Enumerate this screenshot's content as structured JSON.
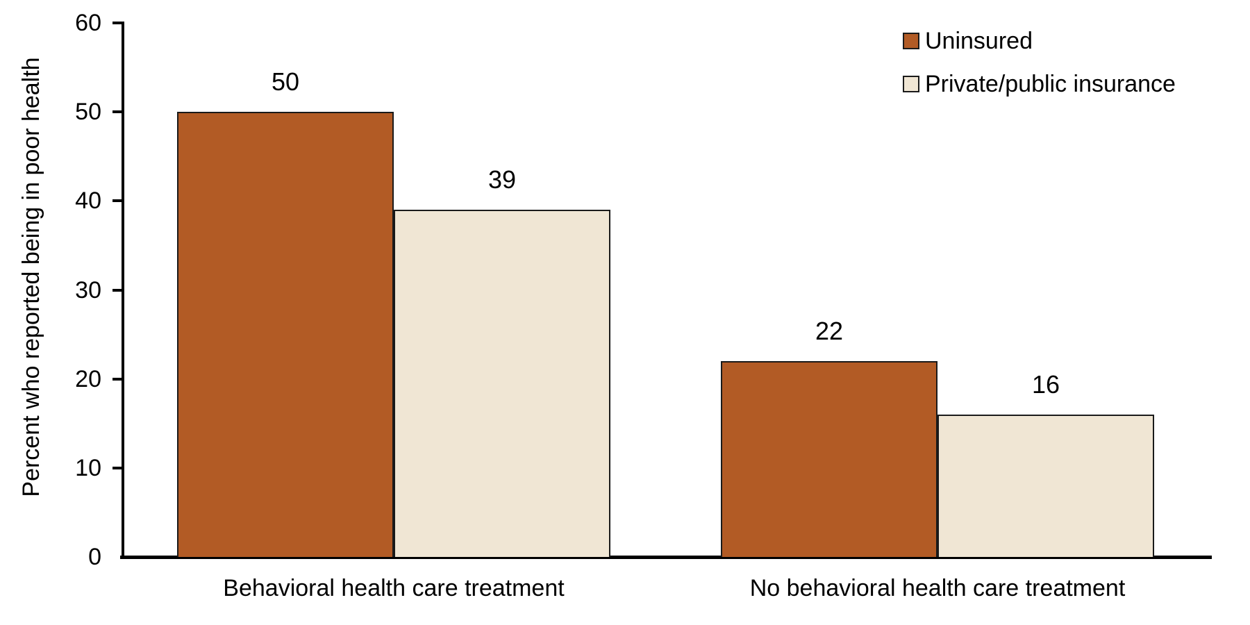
{
  "chart_data": {
    "type": "bar",
    "title": "",
    "xlabel": "",
    "ylabel": "Percent who reported being in poor health",
    "ylim": [
      0,
      60
    ],
    "yticks": [
      0,
      10,
      20,
      30,
      40,
      50,
      60
    ],
    "grid": false,
    "bar_value_labels": true,
    "legend_position": "top-right",
    "categories": [
      "Behavioral health care treatment",
      "No behavioral health care treatment"
    ],
    "series": [
      {
        "name": "Uninsured",
        "color": "#B25B25",
        "values": [
          50,
          22
        ]
      },
      {
        "name": "Private/public insurance",
        "color": "#F0E6D4",
        "values": [
          39,
          16
        ]
      }
    ]
  },
  "colors": {
    "background": "#FFFFFF",
    "axis": "#000000",
    "bar_border": "#1A1A1A",
    "text": "#000000",
    "series_uninsured": "#B25B25",
    "series_insured": "#F0E6D4"
  }
}
